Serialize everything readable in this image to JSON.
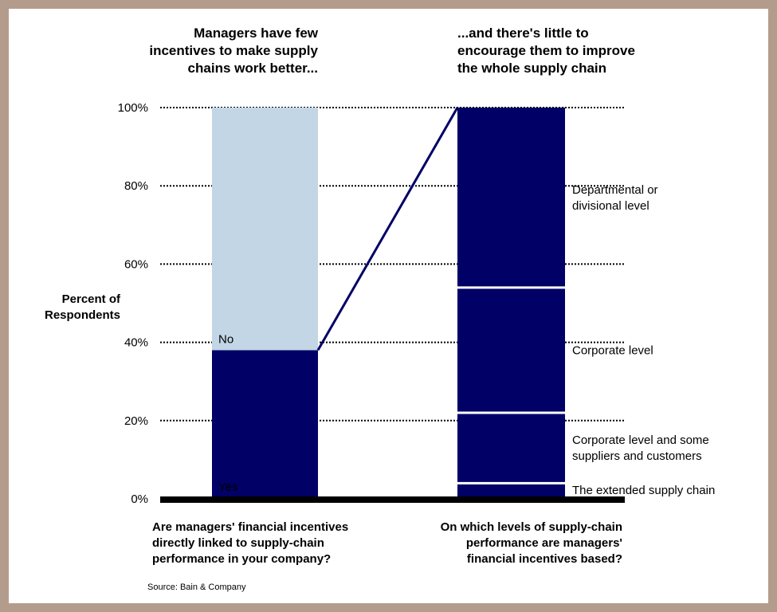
{
  "chart_data": [
    {
      "type": "bar",
      "stacked": true,
      "title_lines": [
        "Managers have few",
        "incentives to make supply",
        "chains work better..."
      ],
      "question_lines": [
        "Are managers' financial incentives",
        "directly linked to supply-chain",
        "performance in your company?"
      ],
      "ylabel_lines": [
        "Percent of",
        "Respondents"
      ],
      "y_ticks": [
        "0%",
        "20%",
        "40%",
        "60%",
        "80%",
        "100%"
      ],
      "ylim": [
        0,
        100
      ],
      "grid": true,
      "segments": [
        {
          "name": "Yes",
          "value": 38,
          "color": "#000066"
        },
        {
          "name": "No",
          "value": 62,
          "color": "#c2d6e6"
        }
      ]
    },
    {
      "type": "bar",
      "stacked": true,
      "title_lines": [
        "...and there's little to",
        "encourage them to improve",
        "the whole supply chain"
      ],
      "question_lines": [
        "On which levels of supply-chain",
        "performance are managers'",
        "financial incentives based?"
      ],
      "ylim": [
        0,
        100
      ],
      "segments": [
        {
          "name_lines": [
            "The extended supply chain"
          ],
          "value": 4,
          "color": "#000066"
        },
        {
          "name_lines": [
            "Corporate level and some",
            "suppliers and customers"
          ],
          "value": 18,
          "color": "#000066"
        },
        {
          "name_lines": [
            "Corporate level"
          ],
          "value": 32,
          "color": "#000066"
        },
        {
          "name_lines": [
            "Departmental or",
            "divisional level"
          ],
          "value": 46,
          "color": "#000066"
        }
      ]
    }
  ],
  "source": "Source: Bain & Company"
}
